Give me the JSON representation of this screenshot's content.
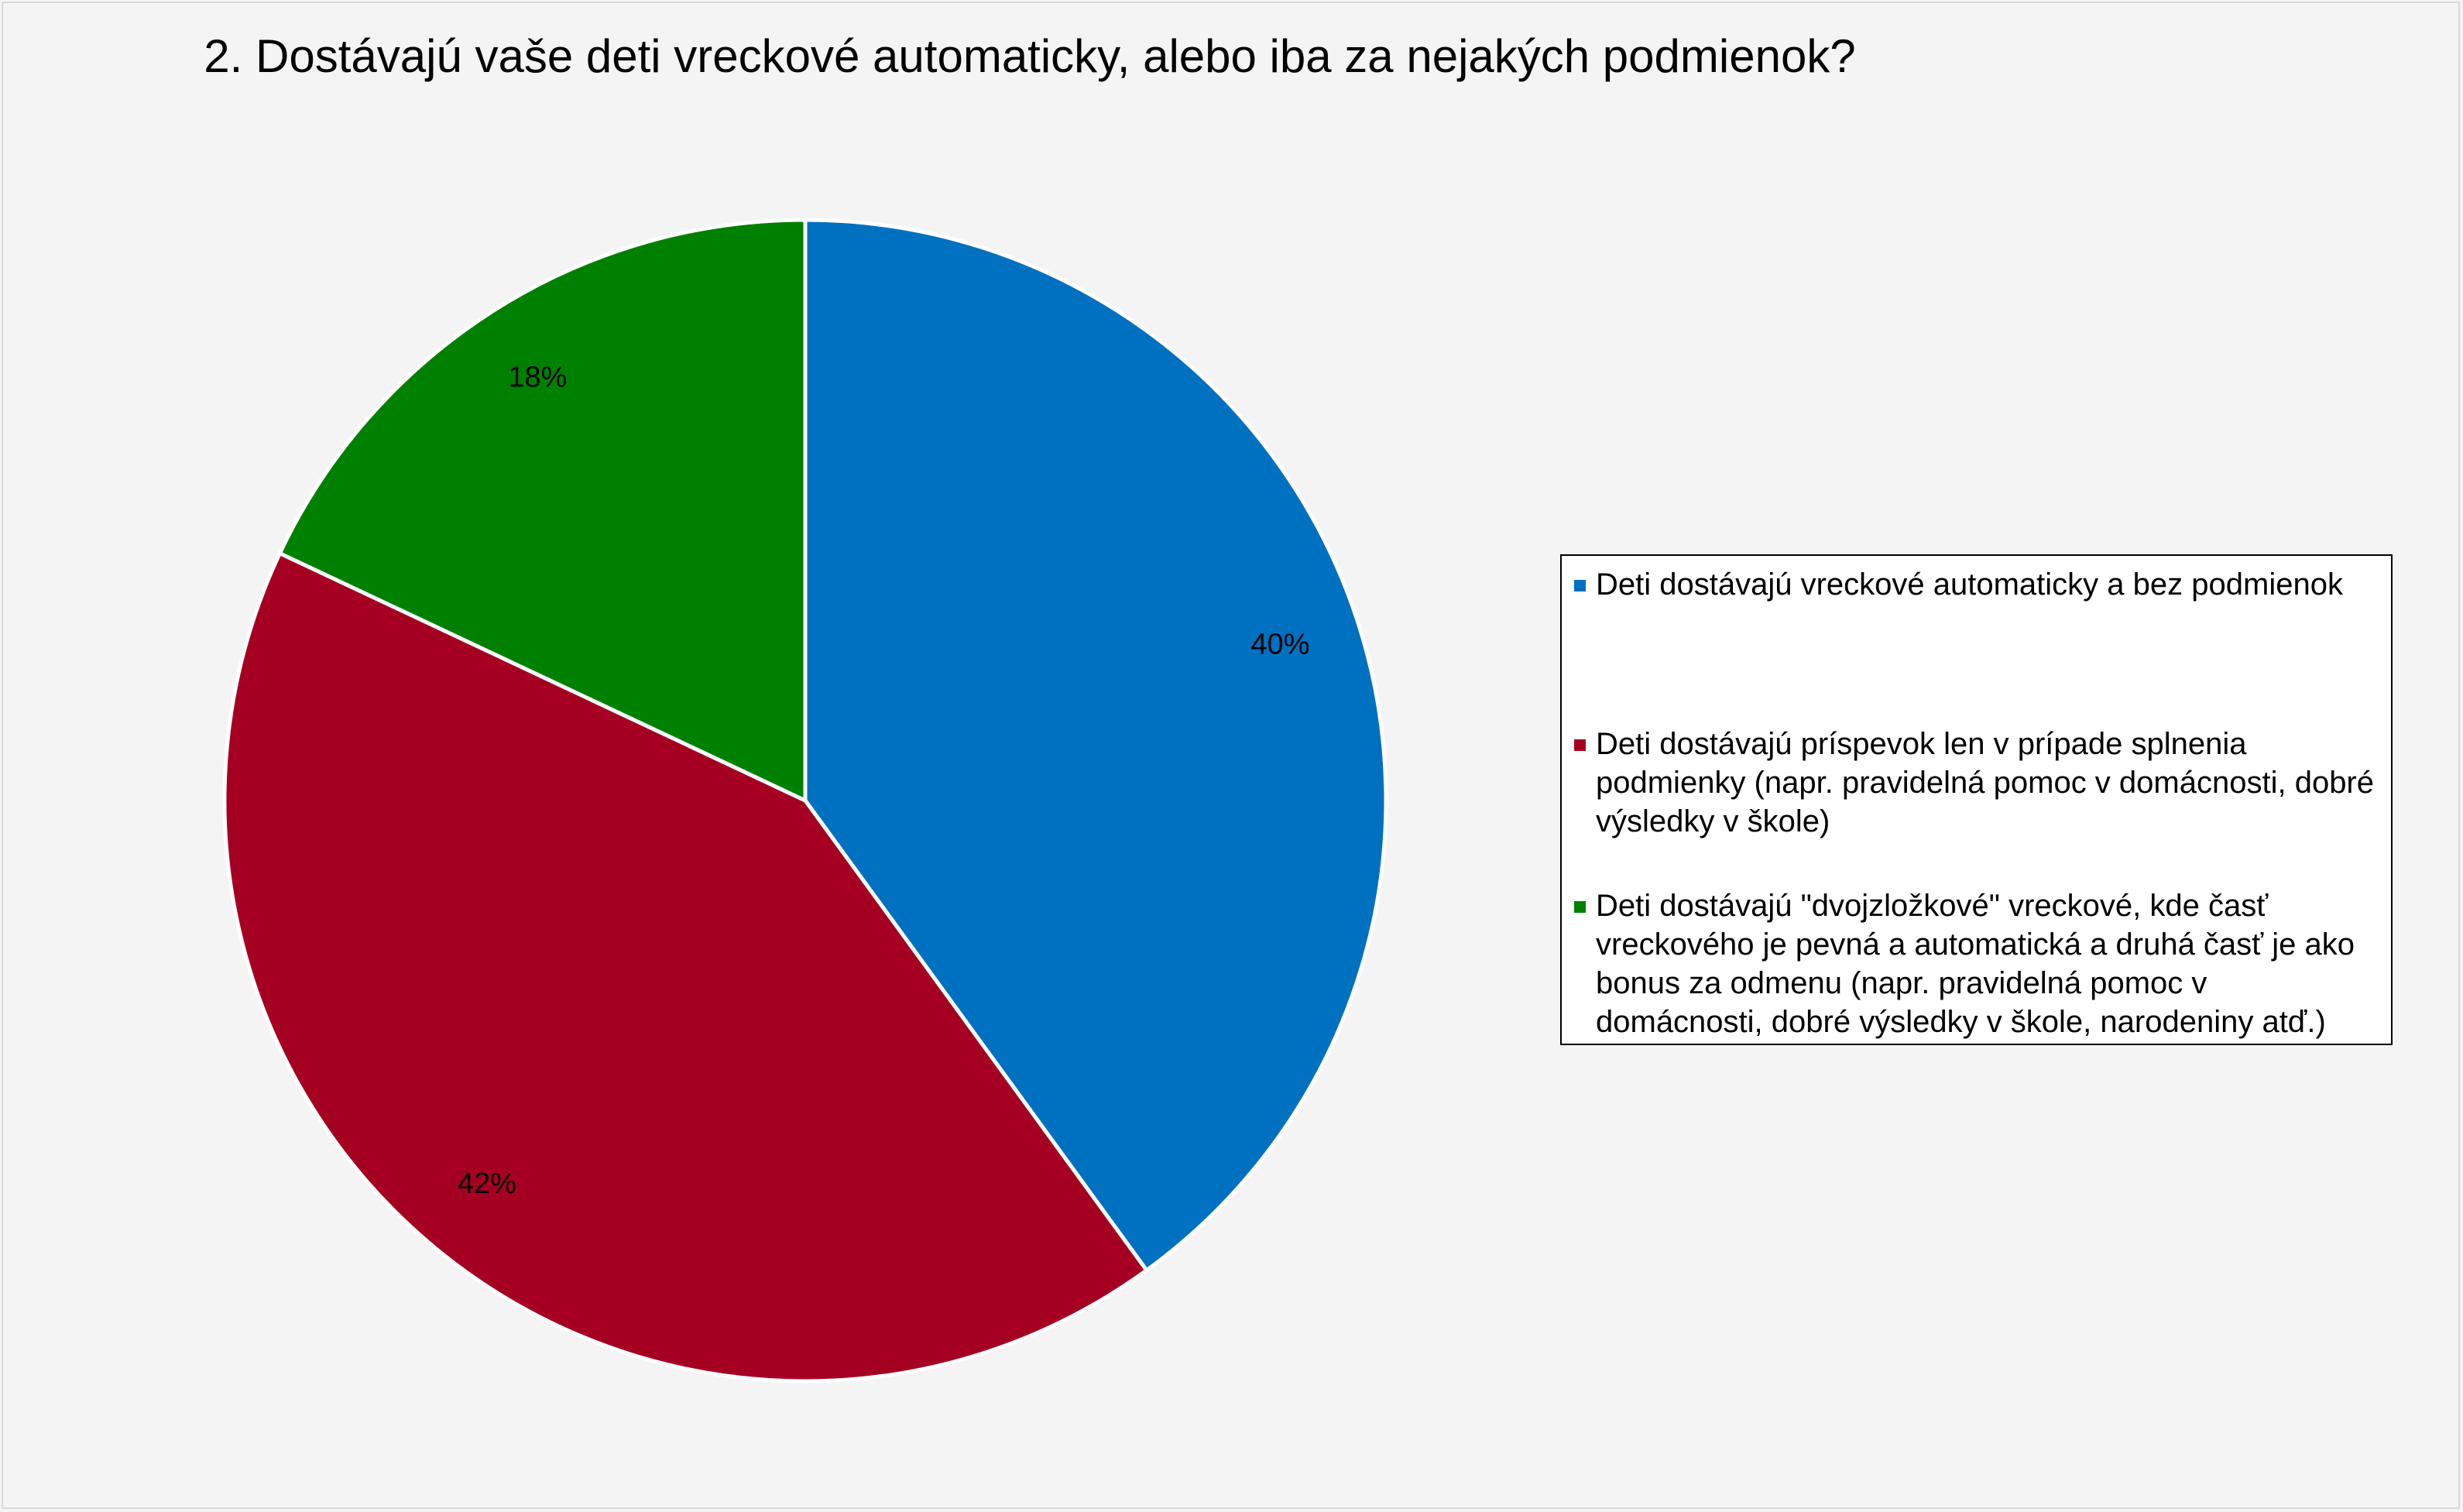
{
  "chart_data": {
    "type": "pie",
    "title": "2. Dostávajú vaše deti vreckové automaticky, alebo iba za nejakých podmienok?",
    "legend_position": "right",
    "slices": [
      {
        "label": "Deti dostávajú vreckové automaticky a bez podmienok",
        "value": 40,
        "value_label": "40%",
        "color": "#0070c0"
      },
      {
        "label": "Deti dostávajú príspevok len v prípade splnenia podmienky (napr. pravidelná pomoc v domácnosti, dobré výsledky v škole)",
        "value": 42,
        "value_label": "42%",
        "color": "#a50021"
      },
      {
        "label": "Deti dostávajú \"dvojzložkové\" vreckové, kde časť vreckového je pevná a automatická a druhá časť je ako bonus za odmenu (napr. pravidelná pomoc v domácnosti, dobré výsledky v škole, narodeniny atď.)",
        "value": 18,
        "value_label": "18%",
        "color": "#008000"
      }
    ]
  }
}
